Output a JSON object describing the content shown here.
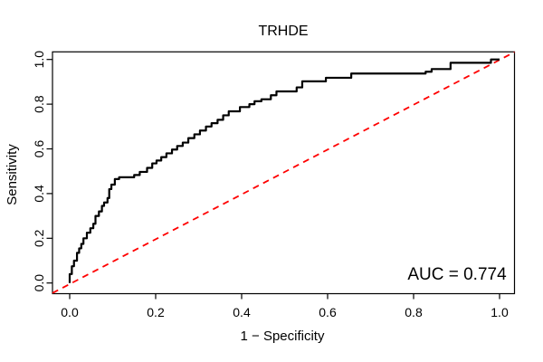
{
  "chart_data": {
    "type": "line",
    "subtype": "roc-curve",
    "title": "TRHDE",
    "xlabel": "1 − Specificity",
    "ylabel": "Sensitivity",
    "annotation": "AUC = 0.774",
    "auc": 0.774,
    "xlim": [
      -0.04,
      1.04
    ],
    "ylim": [
      -0.045,
      1.035
    ],
    "x_ticks": [
      0.0,
      0.2,
      0.4,
      0.6,
      0.8,
      1.0
    ],
    "y_ticks": [
      0.0,
      0.2,
      0.4,
      0.6,
      0.8,
      1.0
    ],
    "x_tick_labels": [
      "0.0",
      "0.2",
      "0.4",
      "0.6",
      "0.8",
      "1.0"
    ],
    "y_tick_labels": [
      "0.0",
      "0.2",
      "0.4",
      "0.6",
      "0.8",
      "1.0"
    ],
    "grid": false,
    "legend": "none",
    "series": [
      {
        "name": "ROC step curve",
        "style": "step",
        "color": "#000000",
        "line_width": 2.2,
        "start": [
          0.0,
          0.0
        ],
        "end": [
          1.0,
          1.0
        ],
        "step_points": [
          [
            0.0,
            0.04
          ],
          [
            0.005,
            0.075
          ],
          [
            0.01,
            0.1
          ],
          [
            0.017,
            0.135
          ],
          [
            0.022,
            0.155
          ],
          [
            0.027,
            0.175
          ],
          [
            0.032,
            0.2
          ],
          [
            0.04,
            0.225
          ],
          [
            0.048,
            0.245
          ],
          [
            0.055,
            0.265
          ],
          [
            0.06,
            0.3
          ],
          [
            0.068,
            0.32
          ],
          [
            0.075,
            0.345
          ],
          [
            0.08,
            0.36
          ],
          [
            0.088,
            0.38
          ],
          [
            0.092,
            0.42
          ],
          [
            0.097,
            0.44
          ],
          [
            0.105,
            0.465
          ],
          [
            0.115,
            0.473
          ],
          [
            0.15,
            0.483
          ],
          [
            0.163,
            0.497
          ],
          [
            0.18,
            0.515
          ],
          [
            0.192,
            0.535
          ],
          [
            0.202,
            0.548
          ],
          [
            0.213,
            0.563
          ],
          [
            0.225,
            0.58
          ],
          [
            0.238,
            0.597
          ],
          [
            0.25,
            0.613
          ],
          [
            0.263,
            0.628
          ],
          [
            0.276,
            0.648
          ],
          [
            0.29,
            0.665
          ],
          [
            0.303,
            0.682
          ],
          [
            0.317,
            0.7
          ],
          [
            0.33,
            0.715
          ],
          [
            0.344,
            0.73
          ],
          [
            0.357,
            0.75
          ],
          [
            0.37,
            0.768
          ],
          [
            0.396,
            0.787
          ],
          [
            0.418,
            0.8
          ],
          [
            0.43,
            0.813
          ],
          [
            0.446,
            0.822
          ],
          [
            0.468,
            0.84
          ],
          [
            0.481,
            0.857
          ],
          [
            0.528,
            0.875
          ],
          [
            0.541,
            0.902
          ],
          [
            0.596,
            0.918
          ],
          [
            0.655,
            0.937
          ],
          [
            0.828,
            0.945
          ],
          [
            0.842,
            0.957
          ],
          [
            0.886,
            0.985
          ],
          [
            0.98,
            1.0
          ]
        ]
      },
      {
        "name": "chance diagonal",
        "style": "dashed",
        "color": "#FF0000",
        "line_width": 1.8,
        "points": [
          [
            0.0,
            0.0
          ],
          [
            1.0,
            1.0
          ]
        ]
      }
    ]
  },
  "colors": {
    "background": "#FFFFFF",
    "axis": "#000000",
    "text": "#000000",
    "curve": "#000000",
    "diagonal": "#FF0000"
  }
}
